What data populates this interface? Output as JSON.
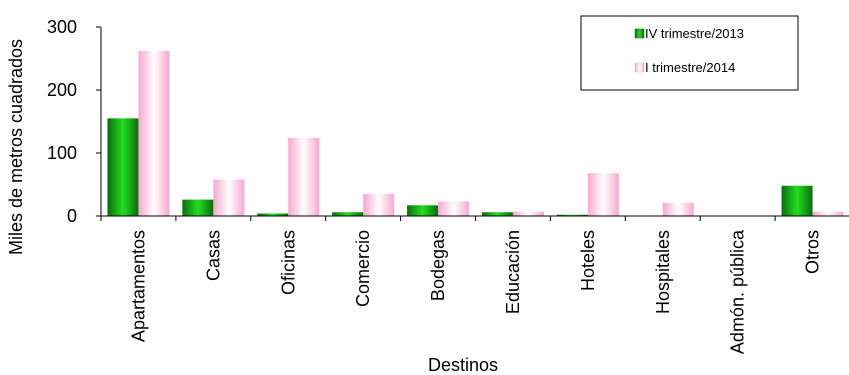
{
  "chart_data": {
    "type": "bar",
    "xlabel": "Destinos",
    "ylabel": "Miles de metros cuadrados",
    "ylim": [
      0,
      300
    ],
    "yticks": [
      0,
      100,
      200,
      300
    ],
    "categories": [
      "Apartamentos",
      "Casas",
      "Oficinas",
      "Comercio",
      "Bodegas",
      "Educación",
      "Hoteles",
      "Hospitales",
      "Admón. pública",
      "Otros"
    ],
    "series": [
      {
        "name": "IV trimestre/2013",
        "color": "#1aa01a",
        "values": [
          155,
          26,
          4,
          6,
          17,
          6,
          2,
          0,
          0,
          48
        ]
      },
      {
        "name": "I trimestre/2014",
        "color": "#f5a8d0",
        "values": [
          262,
          58,
          124,
          35,
          23,
          7,
          68,
          21,
          0,
          7
        ]
      }
    ],
    "legend_position": "top-right",
    "grid": false
  }
}
